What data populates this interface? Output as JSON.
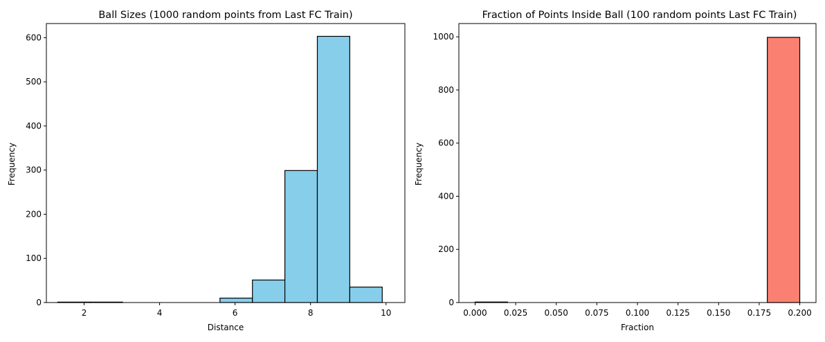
{
  "chart_data": [
    {
      "type": "bar",
      "title": "Ball Sizes (1000 random points from Last FC Train)",
      "xlabel": "Distance",
      "ylabel": "Frequency",
      "xlim": [
        1.0,
        10.5
      ],
      "ylim": [
        0,
        632
      ],
      "xticks": [
        2,
        4,
        6,
        8,
        10
      ],
      "yticks": [
        0,
        100,
        200,
        300,
        400,
        500,
        600
      ],
      "bar_color": "#87CEEB",
      "edge_color": "#000000",
      "bins": [
        {
          "x0": 1.3,
          "x1": 2.16,
          "value": 1
        },
        {
          "x0": 2.16,
          "x1": 3.02,
          "value": 1
        },
        {
          "x0": 3.02,
          "x1": 3.88,
          "value": 0
        },
        {
          "x0": 3.88,
          "x1": 4.74,
          "value": 0
        },
        {
          "x0": 4.74,
          "x1": 5.6,
          "value": 0
        },
        {
          "x0": 5.6,
          "x1": 6.46,
          "value": 10
        },
        {
          "x0": 6.46,
          "x1": 7.32,
          "value": 51
        },
        {
          "x0": 7.32,
          "x1": 8.18,
          "value": 299
        },
        {
          "x0": 8.18,
          "x1": 9.04,
          "value": 603
        },
        {
          "x0": 9.04,
          "x1": 9.9,
          "value": 35
        }
      ]
    },
    {
      "type": "bar",
      "title": "Fraction of Points Inside Ball (100 random points Last FC Train)",
      "xlabel": "Fraction",
      "ylabel": "Frequency",
      "xlim": [
        -0.01,
        0.21
      ],
      "ylim": [
        0,
        1050
      ],
      "xticks": [
        "0.000",
        "0.025",
        "0.050",
        "0.075",
        "0.100",
        "0.125",
        "0.150",
        "0.175",
        "0.200"
      ],
      "yticks": [
        0,
        200,
        400,
        600,
        800,
        1000
      ],
      "bar_color": "#FA8072",
      "edge_color": "#000000",
      "bins": [
        {
          "x0": 0.0,
          "x1": 0.02,
          "value": 2
        },
        {
          "x0": 0.02,
          "x1": 0.04,
          "value": 0
        },
        {
          "x0": 0.04,
          "x1": 0.06,
          "value": 0
        },
        {
          "x0": 0.06,
          "x1": 0.08,
          "value": 0
        },
        {
          "x0": 0.08,
          "x1": 0.1,
          "value": 0
        },
        {
          "x0": 0.1,
          "x1": 0.12,
          "value": 0
        },
        {
          "x0": 0.12,
          "x1": 0.14,
          "value": 0
        },
        {
          "x0": 0.14,
          "x1": 0.16,
          "value": 0
        },
        {
          "x0": 0.16,
          "x1": 0.18,
          "value": 0
        },
        {
          "x0": 0.18,
          "x1": 0.2,
          "value": 998
        }
      ]
    }
  ]
}
